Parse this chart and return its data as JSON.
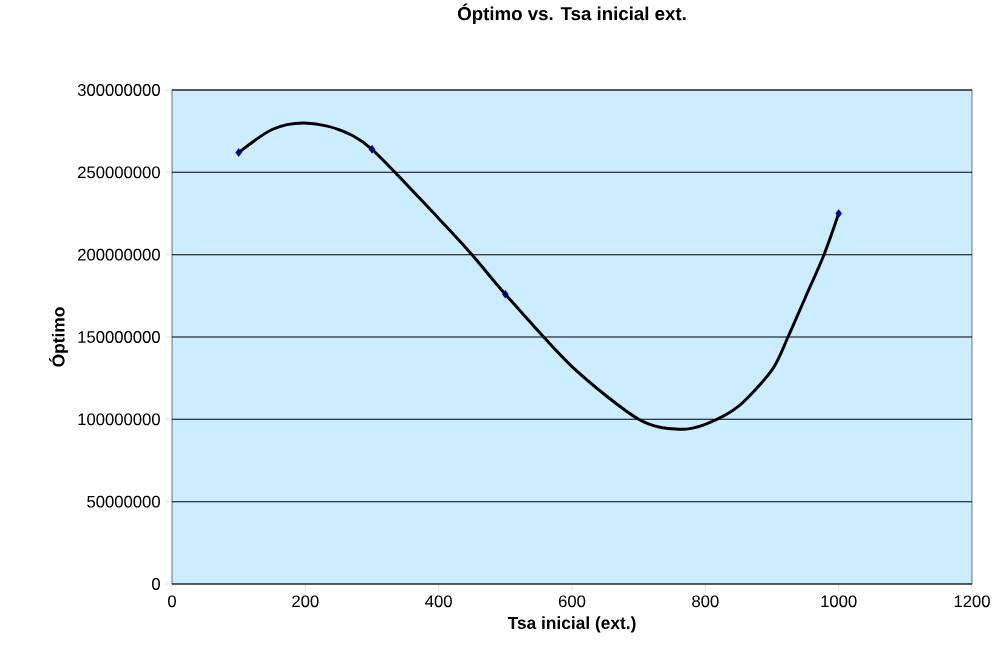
{
  "chart_data": {
    "type": "scatter",
    "title": "Óptimo vs. Tsa inicial ext.",
    "xlabel": "Tsa inicial (ext.)",
    "ylabel": "Óptimo",
    "series": [
      {
        "type": "line",
        "color": "#000000",
        "marker": "none",
        "x": [
          100,
          150,
          197,
          250,
          300,
          400,
          450,
          500,
          600,
          700,
          759,
          800,
          850,
          900,
          924,
          950,
          978,
          1000
        ],
        "values": [
          262000000,
          276000000,
          280000000,
          276000000,
          264000000,
          222000000,
          200000000,
          176000000,
          132000000,
          100000000,
          94000000,
          97000000,
          108000000,
          130000000,
          150000000,
          174000000,
          200000000,
          225000000
        ]
      },
      {
        "color": "#000080",
        "marker": "diamond",
        "x": [
          100,
          300,
          500,
          1000
        ],
        "values": [
          262000000,
          264000000,
          176000000,
          225000000
        ]
      }
    ],
    "xlim": [
      0,
      1200
    ],
    "xticks": [
      0,
      200,
      400,
      600,
      800,
      1000,
      1200
    ],
    "ylim": [
      0,
      300000000
    ],
    "yticks": [
      0,
      50000000,
      100000000,
      150000000,
      200000000,
      250000000,
      300000000
    ],
    "grid": "y"
  }
}
